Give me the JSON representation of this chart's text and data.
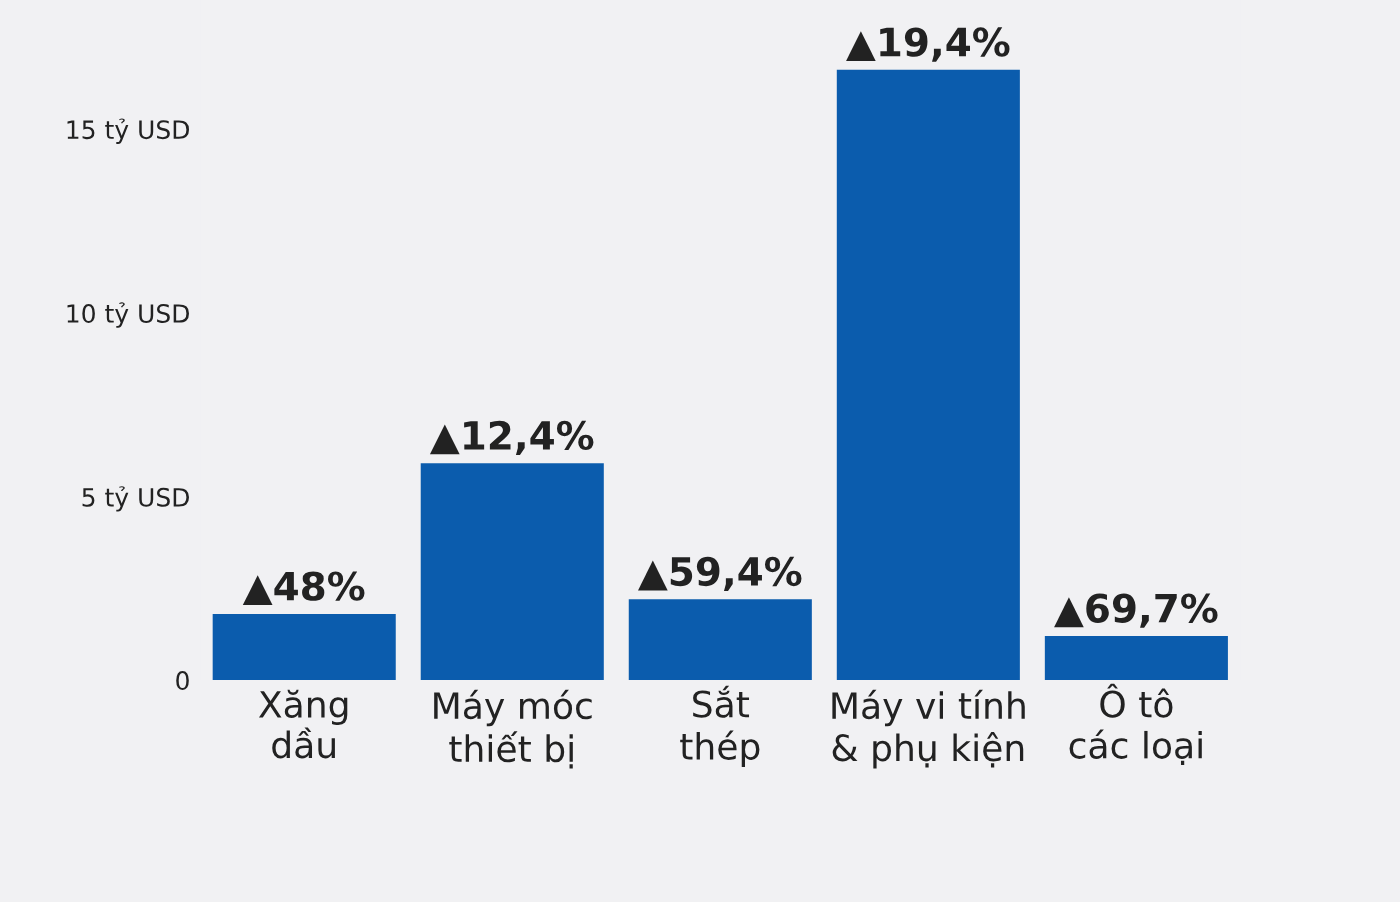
{
  "chart_data": {
    "type": "bar",
    "categories": [
      "Xăng\ndầu",
      "Máy móc\nthiết bị",
      "Sắt\nthép",
      "Máy vi tính\n& phụ kiện",
      "Ô tô\ncác loại"
    ],
    "values": [
      1.8,
      5.9,
      2.2,
      16.6,
      1.2
    ],
    "color": "#0b5cad",
    "annotations": [
      {
        "text": "▲48%",
        "x": "Xăng\ndầu",
        "y": 1.8
      },
      {
        "text": "▲12,4%",
        "x": "Máy móc\nthiết bị",
        "y": 5.9
      },
      {
        "text": "▲59,4%",
        "x": "Sắt\nthép",
        "y": 2.2
      },
      {
        "text": "▲19,4%",
        "x": "Máy vi tính\n& phụ kiện",
        "y": 16.6
      },
      {
        "text": "▲69,7%",
        "x": "Ô tô\ncác loại",
        "y": 1.2
      }
    ],
    "ylim": [
      0,
      18.5
    ],
    "yticks": [
      {
        "value": 0,
        "label": "0"
      },
      {
        "value": 5,
        "label": "5 tỷ USD"
      },
      {
        "value": 10,
        "label": "10 tỷ USD"
      },
      {
        "value": 15,
        "label": "15 tỷ USD"
      }
    ],
    "grid": false
  }
}
